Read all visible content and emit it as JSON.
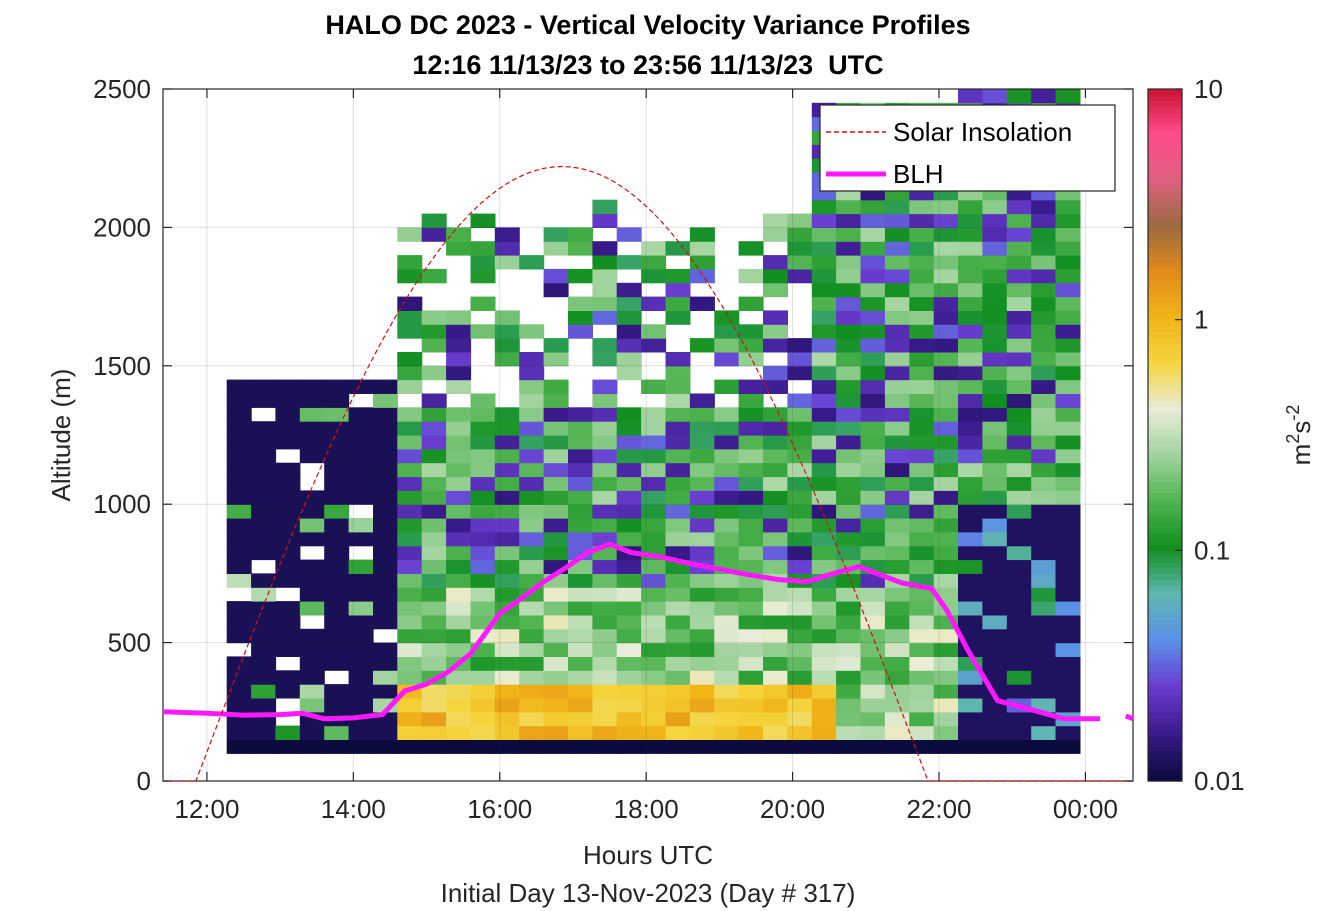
{
  "chart_data": {
    "type": "heatmap",
    "title": "HALO DC 2023 - Vertical Velocity Variance Profiles",
    "subtitle": "12:16 11/13/23 to 23:56 11/13/23  UTC",
    "xlabel": "Hours UTC",
    "footer": "Initial Day 13-Nov-2023 (Day # 317)",
    "ylabel": "Altitude (m)",
    "xlim": [
      11.4,
      24.65
    ],
    "ylim": [
      0,
      2500
    ],
    "x_ticks": [
      12,
      14,
      16,
      18,
      20,
      22,
      24
    ],
    "x_tick_labels": [
      "12:00",
      "14:00",
      "16:00",
      "18:00",
      "20:00",
      "22:00",
      "00:00"
    ],
    "y_ticks": [
      0,
      500,
      1000,
      1500,
      2000,
      2500
    ],
    "y_tick_labels": [
      "0",
      "500",
      "1000",
      "1500",
      "2000",
      "2500"
    ],
    "colorbar": {
      "scale": "log",
      "range": [
        0.01,
        10
      ],
      "ticks": [
        0.01,
        0.1,
        1,
        10
      ],
      "tick_labels": [
        "0.01",
        "0.1",
        "1",
        "10"
      ],
      "label_base": "m",
      "label_exp1": "2",
      "label_mid": "s",
      "label_exp2": "-2",
      "colors": [
        "#0b0b3d",
        "#3a1a8c",
        "#6a3dd0",
        "#5a8fe8",
        "#5fb7b0",
        "#118f1f",
        "#4fb34f",
        "#9fd39c",
        "#e8ecd8",
        "#f4d53e",
        "#f0b418",
        "#e28a1a",
        "#9a6a40",
        "#e06080",
        "#ff4a8a",
        "#c80f2e"
      ]
    },
    "legend": {
      "position": "top-right",
      "items": [
        {
          "label": "Solar Insolation",
          "color": "#d01010",
          "style": "dashed"
        },
        {
          "label": "BLH",
          "color": "#ff19ff",
          "style": "solid"
        }
      ]
    },
    "series": [
      {
        "name": "BLH",
        "color": "#ff19ff",
        "x": [
          11.4,
          12.0,
          12.5,
          13.0,
          13.3,
          13.6,
          14.0,
          14.4,
          14.7,
          15.0,
          15.3,
          15.6,
          16.0,
          16.3,
          16.6,
          16.9,
          17.2,
          17.5,
          17.8,
          18.2,
          18.6,
          19.0,
          19.4,
          19.8,
          20.2,
          20.5,
          20.9,
          21.2,
          21.5,
          21.9,
          22.1,
          22.4,
          22.8,
          23.3,
          23.7,
          24.2
        ],
        "y": [
          250,
          245,
          238,
          240,
          245,
          225,
          228,
          240,
          325,
          350,
          395,
          460,
          605,
          660,
          720,
          770,
          825,
          855,
          825,
          810,
          785,
          765,
          745,
          728,
          720,
          745,
          775,
          745,
          715,
          695,
          620,
          470,
          290,
          255,
          225,
          225
        ]
      },
      {
        "name": "BLH",
        "color": "#ff19ff",
        "x": [
          24.55,
          24.65
        ],
        "y": [
          235,
          225
        ]
      },
      {
        "name": "Solar Insolation",
        "color": "#d01010",
        "style": "dashed",
        "day_start": 11.85,
        "day_end": 21.85,
        "peak": 2220,
        "y": [
          0,
          2220
        ]
      }
    ],
    "heatmap": {
      "x_start": 12.27,
      "x_step": 0.333,
      "columns": 35,
      "y_start": 100,
      "y_step": 50,
      "rows": 48,
      "values": "log10 variance per cell; profiles generated from column descriptions below",
      "profile_groups": [
        {
          "x_range": [
            12.27,
            14.3
          ],
          "top": 1420,
          "surface": "dark navy",
          "aloft": "dark navy"
        },
        {
          "x_range": [
            14.3,
            16.0
          ],
          "top": 2050,
          "surface": "yellow / orange",
          "aloft": "green / purple"
        },
        {
          "x_range": [
            16.0,
            20.0
          ],
          "top": 2100,
          "surface": "yellow to light green",
          "aloft": "green / purple / navy"
        },
        {
          "x_range": [
            20.0,
            22.0
          ],
          "top": 2450,
          "surface": "light green",
          "aloft": "green / purple"
        },
        {
          "x_range": [
            22.0,
            24.0
          ],
          "top": 2500,
          "surface": "dark navy / purple",
          "aloft": "green / light green / yellow"
        }
      ]
    }
  }
}
